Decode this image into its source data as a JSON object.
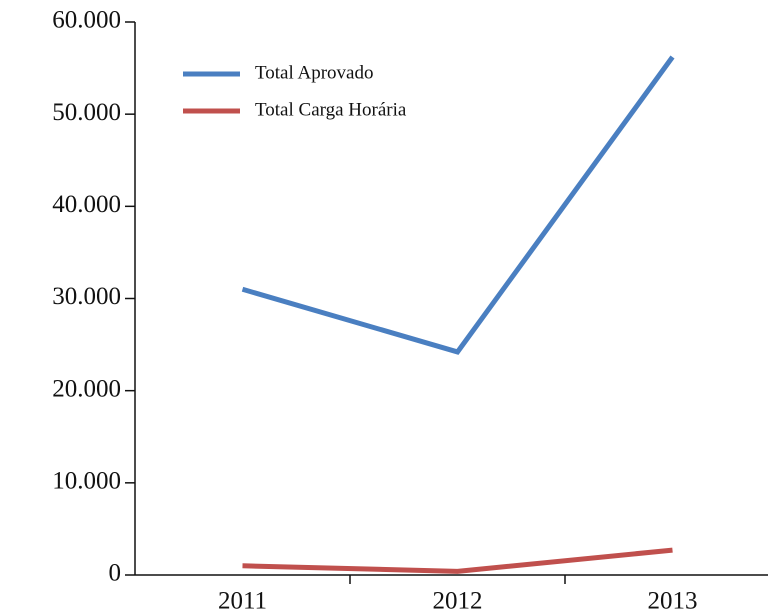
{
  "chart_data": {
    "type": "line",
    "categories": [
      "2011",
      "2012",
      "2013"
    ],
    "series": [
      {
        "name": "Total Aprovado",
        "color": "#4a7fc1",
        "values": [
          31000,
          24200,
          56200
        ]
      },
      {
        "name": "Total Carga Horária",
        "color": "#c0504d",
        "values": [
          1000,
          400,
          2700
        ]
      }
    ],
    "ylim": [
      0,
      60000
    ],
    "yticks": [
      0,
      {
        "value": 10000,
        "label": "10.000"
      },
      {
        "value": 20000,
        "label": "20.000"
      },
      {
        "value": 30000,
        "label": "30.000"
      },
      {
        "value": 40000,
        "label": "40.000"
      },
      {
        "value": 50000,
        "label": "50.000"
      },
      {
        "value": 60000,
        "label": "60.000"
      }
    ],
    "legend": "top-left"
  }
}
